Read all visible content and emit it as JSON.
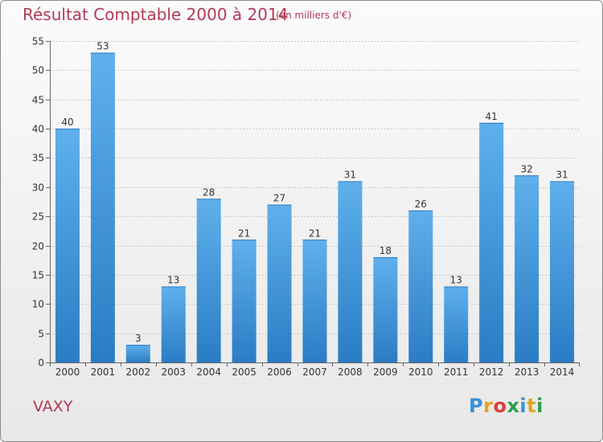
{
  "header": {
    "title": "Résultat Comptable 2000 à 2014",
    "subtitle": "(en milliers d'€)"
  },
  "footer": {
    "commune": "VAXY",
    "logo_letters": [
      "P",
      "r",
      "o",
      "x",
      "i",
      "t",
      "i"
    ],
    "logo_colors": [
      "#3a8fd8",
      "#e8a21e",
      "#e03c3c",
      "#2e9e4a",
      "#3a8fd8",
      "#e8a21e",
      "#2e9e4a"
    ]
  },
  "colors": {
    "bar_light": "#5fb0ec",
    "bar_dark": "#2b7cc4",
    "text_accent": "#b23a57"
  },
  "chart_data": {
    "type": "bar",
    "title": "Résultat Comptable 2000 à 2014",
    "subtitle": "(en milliers d'€)",
    "xlabel": "",
    "ylabel": "",
    "categories": [
      "2000",
      "2001",
      "2002",
      "2003",
      "2004",
      "2005",
      "2006",
      "2007",
      "2008",
      "2009",
      "2010",
      "2011",
      "2012",
      "2013",
      "2014"
    ],
    "values": [
      40,
      53,
      3,
      13,
      28,
      21,
      27,
      21,
      31,
      18,
      26,
      13,
      41,
      32,
      31
    ],
    "ylim": [
      0,
      55
    ],
    "yticks": [
      0,
      5,
      10,
      15,
      20,
      25,
      30,
      35,
      40,
      45,
      50,
      55
    ],
    "grid": true
  }
}
